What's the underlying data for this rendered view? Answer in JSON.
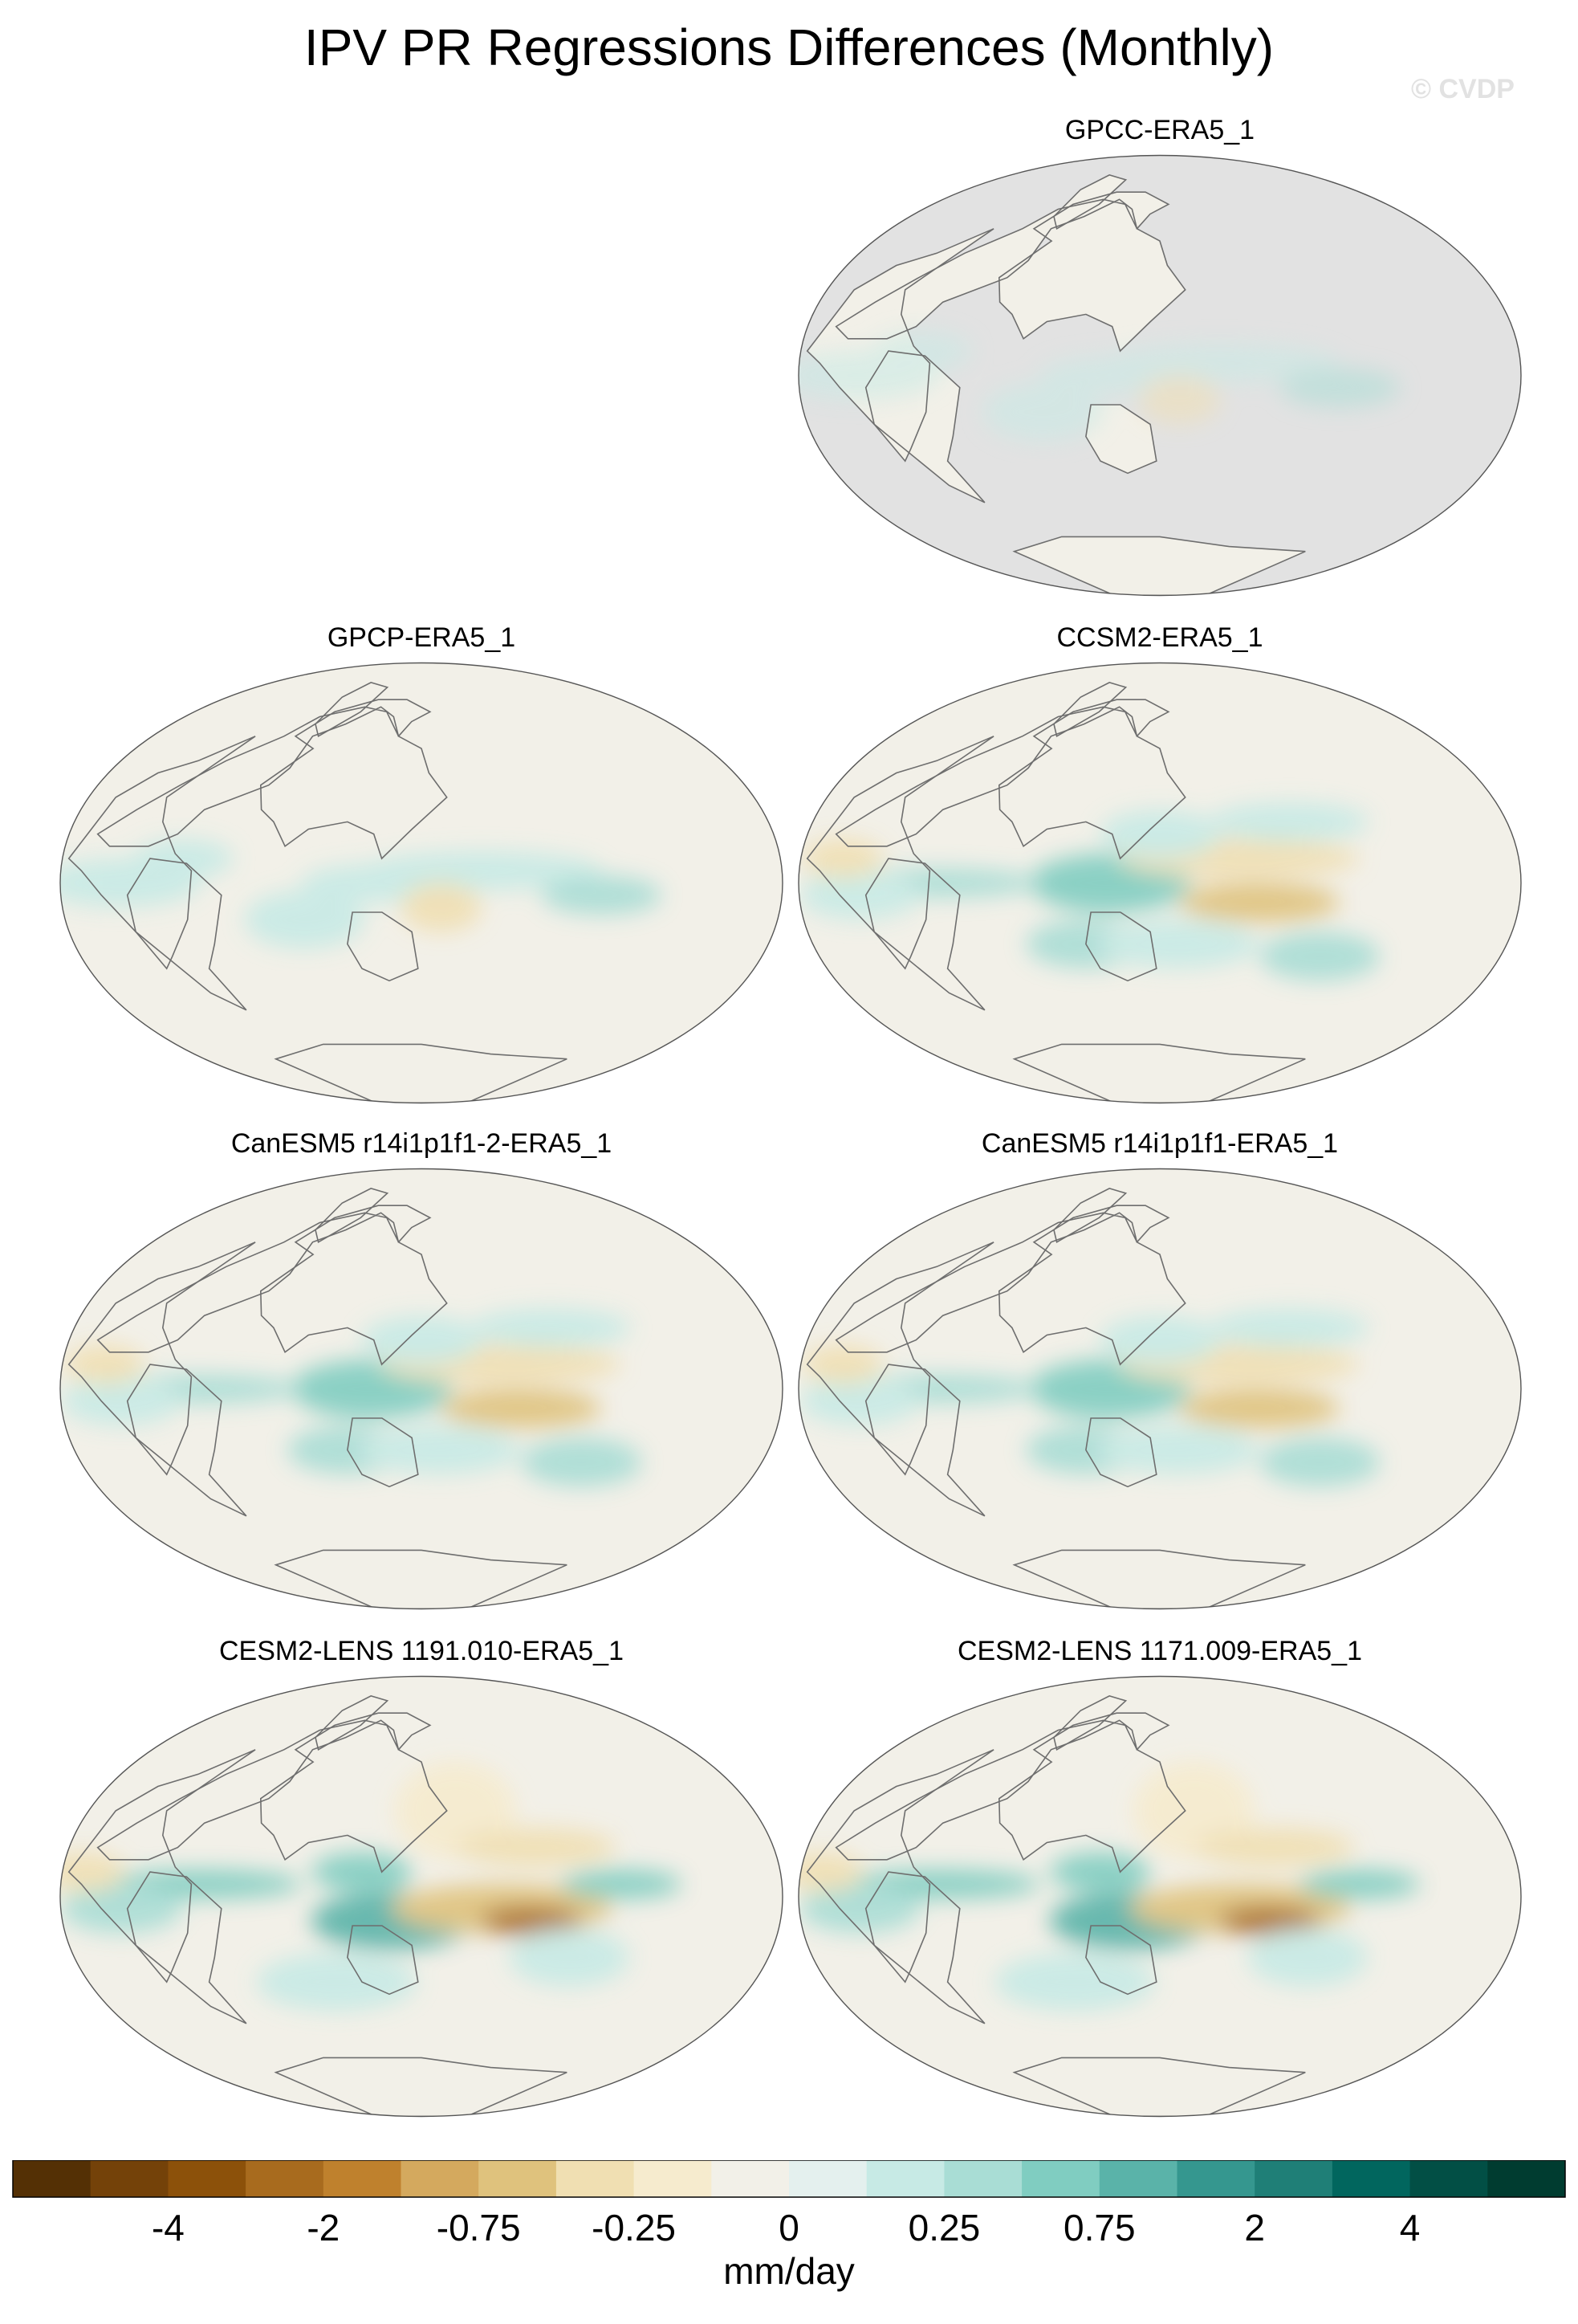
{
  "title": "IPV PR Regressions Differences (Monthly)",
  "watermark": "© CVDP",
  "panels": [
    {
      "title": "GPCC-ERA5_1",
      "land_only": true,
      "pattern": "weak"
    },
    {
      "title": "GPCP-ERA5_1",
      "land_only": false,
      "pattern": "weak"
    },
    {
      "title": "CCSM2-ERA5_1",
      "land_only": false,
      "pattern": "moderate"
    },
    {
      "title": "CanESM5 r14i1p1f1-2-ERA5_1",
      "land_only": false,
      "pattern": "moderate"
    },
    {
      "title": "CanESM5 r14i1p1f1-ERA5_1",
      "land_only": false,
      "pattern": "moderate"
    },
    {
      "title": "CESM2-LENS 1191.010-ERA5_1",
      "land_only": false,
      "pattern": "strong"
    },
    {
      "title": "CESM2-LENS 1171.009-ERA5_1",
      "land_only": false,
      "pattern": "strong"
    }
  ],
  "colorbar": {
    "units": "mm/day",
    "tick_labels": [
      "-4",
      "-2",
      "-0.75",
      "-0.25",
      "0",
      "0.25",
      "0.75",
      "2",
      "4"
    ],
    "colors": [
      "#543005",
      "#744209",
      "#8c510a",
      "#a86b1e",
      "#bf812d",
      "#d4a95e",
      "#dfc27d",
      "#f0dfb2",
      "#f6ebce",
      "#f2f0e8",
      "#e4f0ee",
      "#c7eae5",
      "#a9ddd5",
      "#80cdc1",
      "#5ab3a9",
      "#35978f",
      "#1f7f77",
      "#01665e",
      "#024f45",
      "#003c30"
    ],
    "missing_color": "#e2e2e2"
  }
}
